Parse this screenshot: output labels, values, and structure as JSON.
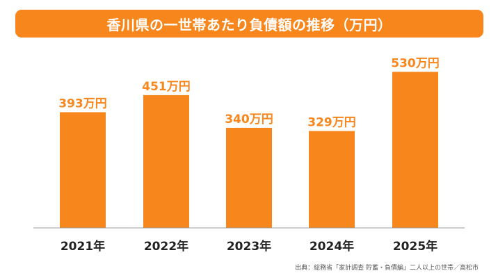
{
  "colors": {
    "accent": "#f7861c",
    "axis": "#9a9a9a",
    "tick_text": "#222222"
  },
  "chart_data": {
    "type": "bar",
    "title": "香川県の一世帯あたり負債額の推移（万円）",
    "categories": [
      "2021年",
      "2022年",
      "2023年",
      "2024年",
      "2025年"
    ],
    "values": [
      393,
      451,
      340,
      329,
      530
    ],
    "data_labels": [
      "393万円",
      "451万円",
      "340万円",
      "329万円",
      "530万円"
    ],
    "ylim": [
      0,
      590
    ],
    "grid": false,
    "legend": "none"
  },
  "source": "出典：総務省「家計調査 貯蓄・負債編」二人以上の世帯／高松市"
}
